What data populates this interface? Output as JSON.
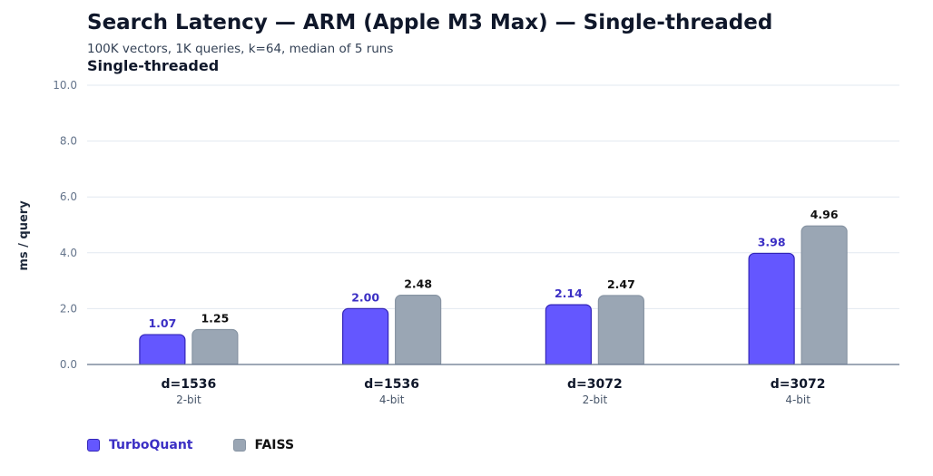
{
  "header": {
    "title": "Search Latency — ARM (Apple M3 Max) — Single-threaded",
    "subtitle": "100K vectors, 1K queries, k=64, median of 5 runs",
    "panel_title": "Single-threaded"
  },
  "chart_data": {
    "type": "bar",
    "title": "Search Latency — ARM (Apple M3 Max) — Single-threaded",
    "subtitle": "100K vectors, 1K queries, k=64, median of 5 runs",
    "ylabel": "ms / query",
    "xlabel": "",
    "ylim": [
      0,
      10
    ],
    "yticks": [
      "0.0",
      "2.0",
      "4.0",
      "6.0",
      "8.0",
      "10.0"
    ],
    "ytick_values": [
      0,
      2,
      4,
      6,
      8,
      10
    ],
    "grid": true,
    "legend_position": "bottom-left",
    "categories": [
      {
        "label": "d=1536",
        "sublabel": "2-bit"
      },
      {
        "label": "d=1536",
        "sublabel": "4-bit"
      },
      {
        "label": "d=3072",
        "sublabel": "2-bit"
      },
      {
        "label": "d=3072",
        "sublabel": "4-bit"
      }
    ],
    "series": [
      {
        "name": "TurboQuant",
        "values": [
          1.07,
          2.0,
          2.14,
          3.98
        ],
        "labels": [
          "1.07",
          "2.00",
          "2.14",
          "3.98"
        ],
        "color": "#6457ff",
        "stroke": "#3325b8",
        "label_color": "#3b2fc4"
      },
      {
        "name": "FAISS",
        "values": [
          1.25,
          2.48,
          2.47,
          4.96
        ],
        "labels": [
          "1.25",
          "2.48",
          "2.47",
          "4.96"
        ],
        "color": "#9aa6b4",
        "stroke": "#8794a3",
        "label_color": "#111111"
      }
    ]
  }
}
